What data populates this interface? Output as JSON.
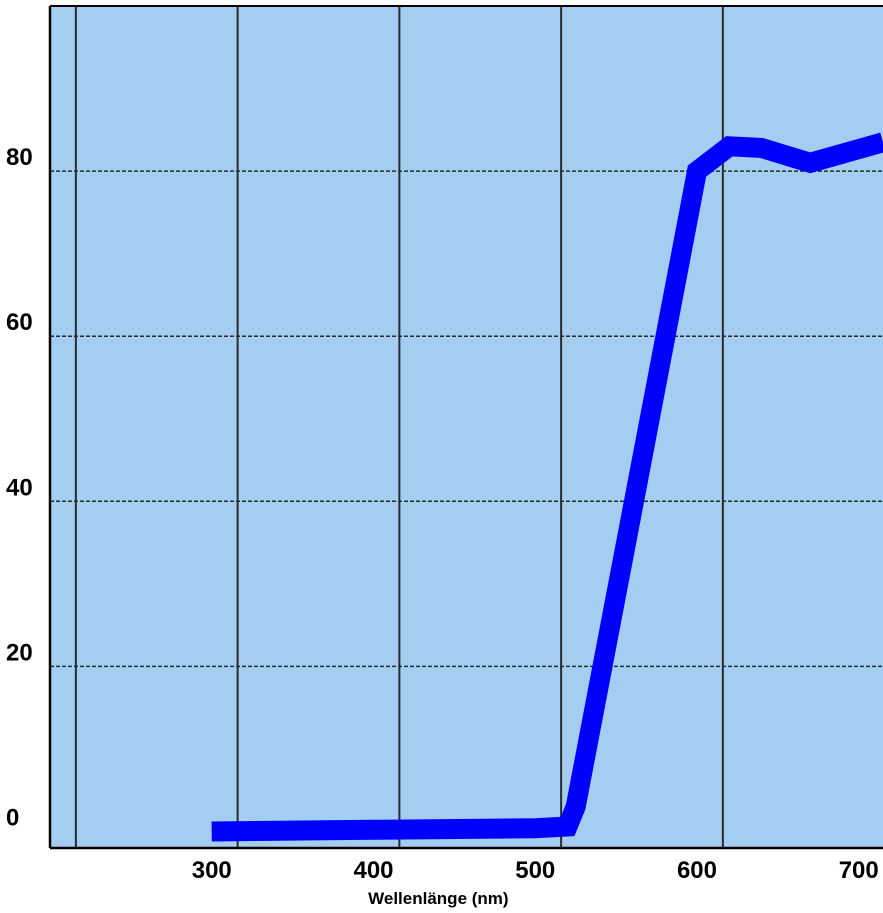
{
  "chart_data": {
    "type": "line",
    "title": "",
    "xlabel": "Wellenlänge (nm)",
    "ylabel": "",
    "x_ticks": [
      300,
      400,
      500,
      600,
      700
    ],
    "y_ticks": [
      0,
      20,
      40,
      60,
      80
    ],
    "xlim": [
      200,
      715
    ],
    "ylim": [
      -2,
      100
    ],
    "grid": true,
    "legend": "none",
    "series": [
      {
        "color": "#0000ff",
        "x": [
          300,
          400,
          500,
          520,
          525,
          600,
          620,
          640,
          670,
          715
        ],
        "y": [
          0,
          0.2,
          0.4,
          0.6,
          3,
          80,
          83,
          82.8,
          81,
          83.5
        ]
      }
    ]
  },
  "colors": {
    "plot_background": "#a3cdf1",
    "grid_vertical": "#2b2b2b",
    "grid_horizontal": "#2b2b2b",
    "line": "#0000ff"
  }
}
